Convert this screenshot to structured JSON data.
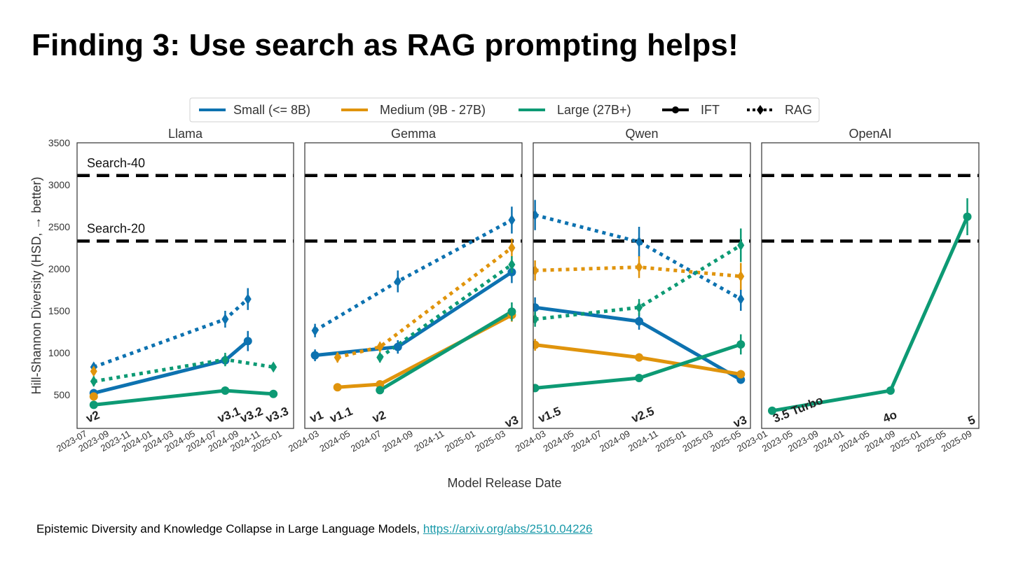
{
  "slide": {
    "title": "Finding 3: Use search as RAG prompting helps!",
    "citation_text": "Epistemic Diversity and Knowledge Collapse in Large Language Models, ",
    "citation_link": "https://arxiv.org/abs/2510.04226"
  },
  "colors": {
    "small": "#0d72b0",
    "medium": "#e0940c",
    "large": "#0d9a74",
    "reference": "#000000"
  },
  "chart_data": {
    "type": "line",
    "ylabel": "Hill-Shannon Diversity (HSD, → better)",
    "xlabel": "Model Release Date",
    "ylim": [
      100,
      3500
    ],
    "yticks": [
      500,
      1000,
      1500,
      2000,
      2500,
      3000,
      3500
    ],
    "grid": false,
    "legend_position": "top-center",
    "legend": [
      {
        "label": "Small (<= 8B)",
        "key": "small",
        "style": "solid"
      },
      {
        "label": "Medium (9B - 27B)",
        "key": "medium",
        "style": "solid"
      },
      {
        "label": "Large (27B+)",
        "key": "large",
        "style": "solid"
      },
      {
        "label": "IFT",
        "key": "reference",
        "style": "solid-marker"
      },
      {
        "label": "RAG",
        "key": "reference",
        "style": "dotted-marker"
      }
    ],
    "reference_lines": [
      {
        "label": "Search-40",
        "value": 3110
      },
      {
        "label": "Search-20",
        "value": 2330
      }
    ],
    "panels": [
      {
        "title": "Llama",
        "xlim": [
          "2023-06-01",
          "2025-02-01"
        ],
        "ticks": [
          "2023-07",
          "2023-09",
          "2023-11",
          "2024-01",
          "2024-03",
          "2024-05",
          "2024-07",
          "2024-09",
          "2024-11",
          "2025-01"
        ],
        "versions": [
          {
            "label": "v2",
            "x": "2023-07-18"
          },
          {
            "label": "v3.1",
            "x": "2024-07-23"
          },
          {
            "label": "v3.2",
            "x": "2024-09-25"
          },
          {
            "label": "v3.3",
            "x": "2024-12-06"
          }
        ],
        "series": [
          {
            "size": "small",
            "mode": "IFT",
            "points": [
              [
                "2023-07-18",
                520,
                50
              ],
              [
                "2024-07-23",
                910,
                50
              ],
              [
                "2024-09-25",
                1140,
                120
              ]
            ]
          },
          {
            "size": "medium",
            "mode": "IFT",
            "points": [
              [
                "2023-07-18",
                480,
                40
              ]
            ]
          },
          {
            "size": "large",
            "mode": "IFT",
            "points": [
              [
                "2023-07-18",
                380,
                30
              ],
              [
                "2024-07-23",
                550,
                30
              ],
              [
                "2024-12-06",
                510,
                30
              ]
            ]
          },
          {
            "size": "small",
            "mode": "RAG",
            "points": [
              [
                "2023-07-18",
                830,
                40
              ],
              [
                "2024-07-23",
                1400,
                100
              ],
              [
                "2024-09-25",
                1640,
                130
              ]
            ]
          },
          {
            "size": "medium",
            "mode": "RAG",
            "points": [
              [
                "2023-07-18",
                780,
                40
              ]
            ]
          },
          {
            "size": "large",
            "mode": "RAG",
            "points": [
              [
                "2023-07-18",
                660,
                60
              ],
              [
                "2024-07-23",
                920,
                80
              ],
              [
                "2024-12-06",
                830,
                50
              ]
            ]
          }
        ]
      },
      {
        "title": "Gemma",
        "xlim": [
          "2024-02-01",
          "2025-04-01"
        ],
        "ticks": [
          "2024-03",
          "2024-05",
          "2024-07",
          "2024-09",
          "2024-11",
          "2025-01",
          "2025-03"
        ],
        "versions": [
          {
            "label": "v1",
            "x": "2024-02-21"
          },
          {
            "label": "v1.1",
            "x": "2024-04-05"
          },
          {
            "label": "v2",
            "x": "2024-06-27"
          },
          {
            "label": "v3",
            "x": "2025-03-12"
          }
        ],
        "series": [
          {
            "size": "small",
            "mode": "IFT",
            "points": [
              [
                "2024-02-21",
                970,
                70
              ],
              [
                "2024-08-01",
                1070,
                80
              ],
              [
                "2025-03-12",
                1960,
                130
              ]
            ]
          },
          {
            "size": "medium",
            "mode": "IFT",
            "points": [
              [
                "2024-04-05",
                590,
                40
              ],
              [
                "2024-06-27",
                625,
                40
              ],
              [
                "2025-03-12",
                1450,
                80
              ]
            ]
          },
          {
            "size": "large",
            "mode": "IFT",
            "points": [
              [
                "2024-06-27",
                555,
                30
              ],
              [
                "2025-03-12",
                1490,
                110
              ]
            ]
          },
          {
            "size": "small",
            "mode": "RAG",
            "points": [
              [
                "2024-02-21",
                1265,
                80
              ],
              [
                "2024-08-01",
                1850,
                130
              ],
              [
                "2025-03-12",
                2580,
                160
              ]
            ]
          },
          {
            "size": "medium",
            "mode": "RAG",
            "points": [
              [
                "2024-04-05",
                945,
                60
              ],
              [
                "2024-06-27",
                1070,
                60
              ],
              [
                "2025-03-12",
                2250,
                110
              ]
            ]
          },
          {
            "size": "large",
            "mode": "RAG",
            "points": [
              [
                "2024-06-27",
                945,
                60
              ],
              [
                "2025-03-12",
                2050,
                100
              ]
            ]
          }
        ]
      },
      {
        "title": "Qwen",
        "xlim": [
          "2024-02-01",
          "2025-05-20"
        ],
        "ticks": [
          "2024-03",
          "2024-05",
          "2024-07",
          "2024-09",
          "2024-11",
          "2025-01",
          "2025-03",
          "2025-05"
        ],
        "versions": [
          {
            "label": "v1.5",
            "x": "2024-02-05"
          },
          {
            "label": "v2.5",
            "x": "2024-09-19"
          },
          {
            "label": "v3",
            "x": "2025-04-29"
          }
        ],
        "series": [
          {
            "size": "small",
            "mode": "IFT",
            "points": [
              [
                "2024-02-05",
                1540,
                120
              ],
              [
                "2024-09-19",
                1375,
                100
              ],
              [
                "2025-04-29",
                680,
                50
              ]
            ]
          },
          {
            "size": "medium",
            "mode": "IFT",
            "points": [
              [
                "2024-02-05",
                1095,
                70
              ],
              [
                "2024-09-19",
                945,
                50
              ],
              [
                "2025-04-29",
                745,
                50
              ]
            ]
          },
          {
            "size": "large",
            "mode": "IFT",
            "points": [
              [
                "2024-02-05",
                580,
                30
              ],
              [
                "2024-09-19",
                700,
                30
              ],
              [
                "2025-04-29",
                1100,
                120
              ]
            ]
          },
          {
            "size": "small",
            "mode": "RAG",
            "points": [
              [
                "2024-02-05",
                2640,
                180
              ],
              [
                "2024-09-19",
                2320,
                180
              ],
              [
                "2025-04-29",
                1640,
                140
              ]
            ]
          },
          {
            "size": "medium",
            "mode": "RAG",
            "points": [
              [
                "2024-02-05",
                1980,
                120
              ],
              [
                "2024-09-19",
                2020,
                130
              ],
              [
                "2025-04-29",
                1910,
                160
              ]
            ]
          },
          {
            "size": "large",
            "mode": "RAG",
            "points": [
              [
                "2024-02-05",
                1400,
                90
              ],
              [
                "2024-09-19",
                1540,
                100
              ],
              [
                "2025-04-29",
                2280,
                200
              ]
            ]
          }
        ]
      },
      {
        "title": "OpenAI",
        "xlim": [
          "2022-12-01",
          "2025-10-01"
        ],
        "ticks": [
          "2023-01",
          "2023-05",
          "2023-09",
          "2024-01",
          "2024-05",
          "2024-09",
          "2025-01",
          "2025-05",
          "2025-09"
        ],
        "versions": [
          {
            "label": "3.5 Turbo",
            "x": "2023-03-01"
          },
          {
            "label": "4o",
            "x": "2024-08-06"
          },
          {
            "label": "5",
            "x": "2025-08-07"
          }
        ],
        "series": [
          {
            "size": "large",
            "mode": "IFT",
            "points": [
              [
                "2023-01-20",
                310,
                30
              ],
              [
                "2024-08-06",
                550,
                30
              ],
              [
                "2025-08-07",
                2620,
                220
              ]
            ]
          }
        ]
      }
    ]
  }
}
